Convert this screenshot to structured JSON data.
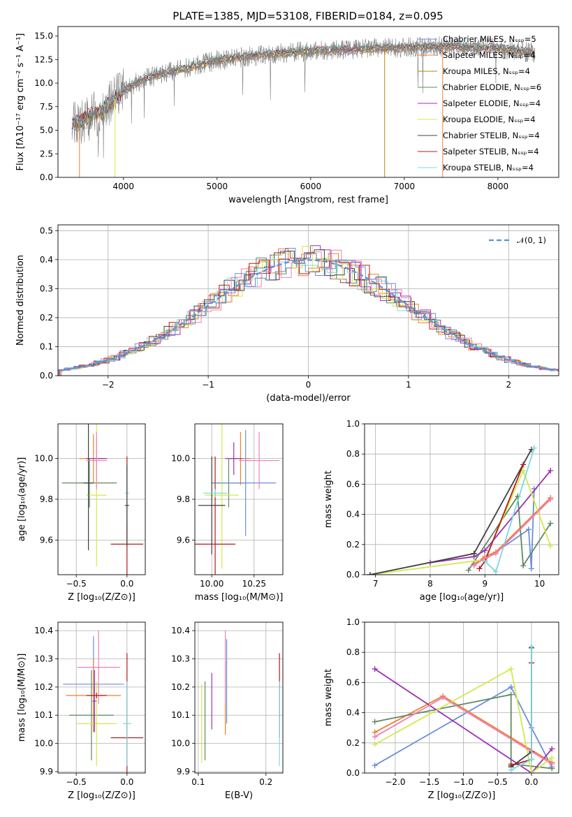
{
  "figure_title": "PLATE=1385, MJD=53108, FIBERID=0184, z=0.095",
  "chart_data": [
    {
      "id": "spectrum",
      "type": "line",
      "xlabel": "wavelength [Angstrom, rest frame]",
      "ylabel": "Flux [fλ10⁻¹⁷ erg cm⁻² s⁻¹ A⁻¹]",
      "xlim": [
        3300,
        8650
      ],
      "ylim": [
        0,
        16
      ],
      "xticks": [
        4000,
        5000,
        6000,
        7000,
        8000
      ],
      "yticks": [
        0.0,
        2.5,
        5.0,
        7.5,
        10.0,
        12.5,
        15.0
      ],
      "grid": false,
      "legend_position": "right",
      "legend": [
        {
          "label": "Chabrier MILES, Nₛₛₚ=5",
          "color": "#6a8fd8"
        },
        {
          "label": "Salpeter MILES, Nₛₛₚ=4",
          "color": "#ee7f2d"
        },
        {
          "label": "Kroupa MILES, Nₛₛₚ=4",
          "color": "#b8860b"
        },
        {
          "label": "Chabrier ELODIE, Nₛₛₚ=6",
          "color": "#5f8a5f"
        },
        {
          "label": "Salpeter ELODIE, Nₛₛₚ=4",
          "color": "#9b30b3"
        },
        {
          "label": "Kroupa ELODIE, Nₛₛₚ=4",
          "color": "#d4e84a"
        },
        {
          "label": "Chabrier STELIB, Nₛₛₚ=4",
          "color": "#404040"
        },
        {
          "label": "Salpeter STELIB, Nₛₛₚ=4",
          "color": "#b01c1c"
        },
        {
          "label": "Kroupa STELIB, Nₛₛₚ=4",
          "color": "#7fd7e0"
        }
      ],
      "continuum": [
        [
          3450,
          5.6
        ],
        [
          3600,
          6.2
        ],
        [
          3800,
          7.2
        ],
        [
          4000,
          9.2
        ],
        [
          4200,
          10.4
        ],
        [
          4500,
          11.2
        ],
        [
          4800,
          11.9
        ],
        [
          5000,
          12.4
        ],
        [
          5300,
          12.8
        ],
        [
          5600,
          13.1
        ],
        [
          6000,
          13.4
        ],
        [
          6500,
          13.6
        ],
        [
          7000,
          13.8
        ],
        [
          7500,
          13.9
        ],
        [
          8000,
          13.7
        ],
        [
          8400,
          13.2
        ]
      ],
      "cutoffs": {
        "blue_start": 3450,
        "red_end": 8400
      },
      "drops": [
        {
          "x": 3530,
          "color": "#ee7f2d"
        },
        {
          "x": 3910,
          "color": "#d4e84a"
        },
        {
          "x": 6790,
          "color": "#b8860b"
        },
        {
          "x": 7410,
          "color": "#ee7f2d"
        }
      ]
    },
    {
      "id": "residuals",
      "type": "histogram",
      "xlabel": "(data-model)/error",
      "ylabel": "Normed distribution",
      "xlim": [
        -2.5,
        2.5
      ],
      "ylim": [
        0,
        0.52
      ],
      "xticks": [
        -2,
        -1,
        0,
        1,
        2
      ],
      "yticks": [
        0.0,
        0.1,
        0.2,
        0.3,
        0.4,
        0.5
      ],
      "grid": true,
      "legend_position": "top-right",
      "legend": [
        {
          "label": "𝒩(0, 1)",
          "color": "#5b8fd8",
          "style": "dashed"
        }
      ],
      "bin_width": 0.1,
      "bin_start": -2.5,
      "series": [
        {
          "color": "#ee7f2d",
          "offset": 0.0
        },
        {
          "color": "#9b30b3",
          "offset": 0.02
        },
        {
          "color": "#5f8a5f",
          "offset": -0.02
        },
        {
          "color": "#d4e84a",
          "offset": 0.04
        },
        {
          "color": "#404040",
          "offset": -0.04
        },
        {
          "color": "#b01c1c",
          "offset": 0.01
        },
        {
          "color": "#7fd7e0",
          "offset": -0.01
        },
        {
          "color": "#ef7fb8",
          "offset": 0.03
        },
        {
          "color": "#6a8fd8",
          "offset": -0.03
        }
      ]
    },
    {
      "id": "age_vs_Z",
      "type": "errorbar",
      "xlabel": "Z [log₁₀(Z/Z⊙)]",
      "ylabel": "age  [log₁₀(age/yr)]",
      "xlim": [
        -0.68,
        0.18
      ],
      "ylim": [
        9.43,
        10.17
      ],
      "xticks": [
        -0.5,
        0.0
      ],
      "xtick_labels": [
        "−0.5",
        "0.0"
      ],
      "yticks": [
        9.6,
        9.8,
        10.0
      ],
      "grid": true,
      "points": [
        {
          "x": -0.33,
          "y": 10.0,
          "xerr": 0.14,
          "yerr": 0.12,
          "color": "#ee7f2d"
        },
        {
          "x": -0.3,
          "y": 10.0,
          "xerr": 0.1,
          "yerr": 0.1,
          "color": "#9b30b3"
        },
        {
          "x": -0.37,
          "y": 9.88,
          "xerr": 0.27,
          "yerr": 0.12,
          "color": "#5f8a5f"
        },
        {
          "x": -0.3,
          "y": 9.82,
          "xerr": 0.1,
          "yerr": 0.35,
          "color": "#d4e84a"
        },
        {
          "x": -0.38,
          "y": 9.88,
          "xerr": 0.05,
          "yerr": 0.33,
          "color": "#404040"
        },
        {
          "x": 0.0,
          "y": 9.58,
          "xerr": 0.16,
          "yerr": 0.43,
          "color": "#b01c1c"
        },
        {
          "x": 0.0,
          "y": 9.83,
          "xerr": 0.02,
          "yerr": 0.14,
          "color": "#7fd7e0"
        },
        {
          "x": -0.3,
          "y": 9.99,
          "xerr": 0.1,
          "yerr": 0.14,
          "color": "#ef7fb8"
        },
        {
          "x": 0.0,
          "y": 9.77,
          "xerr": 0.02,
          "yerr": 0.2,
          "color": "#404040"
        }
      ]
    },
    {
      "id": "age_vs_mass",
      "type": "errorbar",
      "xlabel": "mass [log₁₀(M/M⊙)]",
      "ylabel": "",
      "xlim": [
        9.9,
        10.42
      ],
      "ylim": [
        9.43,
        10.17
      ],
      "xticks": [
        10.0,
        10.25
      ],
      "xtick_labels": [
        "10.00",
        "10.25"
      ],
      "yticks": [
        9.6,
        9.8,
        10.0
      ],
      "grid": true,
      "points": [
        {
          "x": 10.17,
          "y": 10.0,
          "xerr": 0.06,
          "yerr": 0.13,
          "color": "#ee7f2d"
        },
        {
          "x": 10.13,
          "y": 10.0,
          "xerr": 0.05,
          "yerr": 0.08,
          "color": "#9b30b3"
        },
        {
          "x": 10.1,
          "y": 9.88,
          "xerr": 0.1,
          "yerr": 0.12,
          "color": "#5f8a5f"
        },
        {
          "x": 10.06,
          "y": 9.82,
          "xerr": 0.1,
          "yerr": 0.36,
          "color": "#d4e84a"
        },
        {
          "x": 10.0,
          "y": 9.77,
          "xerr": 0.08,
          "yerr": 0.24,
          "color": "#404040"
        },
        {
          "x": 10.02,
          "y": 9.58,
          "xerr": 0.0,
          "yerr": 0.43,
          "color": "#b01c1c"
        },
        {
          "x": 10.02,
          "y": 9.58,
          "xerr": 0.12,
          "yerr": 0.0,
          "color": "#b01c1c"
        },
        {
          "x": 10.2,
          "y": 9.88,
          "xerr": 0.18,
          "yerr": 0.26,
          "color": "#6a8fd8"
        },
        {
          "x": 10.28,
          "y": 9.99,
          "xerr": 0.12,
          "yerr": 0.14,
          "color": "#ef7fb8"
        },
        {
          "x": 10.02,
          "y": 9.83,
          "xerr": 0.07,
          "yerr": 0.02,
          "color": "#7fd7e0"
        }
      ]
    },
    {
      "id": "weight_vs_age",
      "type": "line",
      "xlabel": "age  [log₁₀(age/yr)]",
      "ylabel": "mass weight",
      "xlim": [
        6.8,
        10.35
      ],
      "ylim": [
        0,
        1.0
      ],
      "xticks": [
        7,
        8,
        9,
        10
      ],
      "yticks": [
        0.0,
        0.2,
        0.4,
        0.6,
        0.8,
        1.0
      ],
      "grid": true,
      "series": [
        {
          "color": "#6a8fd8",
          "x": [
            9.0,
            9.8,
            9.85,
            9.9
          ],
          "y": [
            0.1,
            0.3,
            0.04,
            0.57
          ]
        },
        {
          "color": "#ee7f2d",
          "x": [
            8.8,
            9.0,
            9.2,
            10.2
          ],
          "y": [
            0.07,
            0.12,
            0.15,
            0.51
          ]
        },
        {
          "color": "#5f8a5f",
          "x": [
            8.7,
            9.6,
            9.7,
            10.2
          ],
          "y": [
            0.03,
            0.52,
            0.06,
            0.34
          ]
        },
        {
          "color": "#9b30b3",
          "x": [
            8.0,
            8.8,
            9.0,
            10.2
          ],
          "y": [
            0.08,
            0.12,
            0.16,
            0.69
          ]
        },
        {
          "color": "#d4e84a",
          "x": [
            6.9,
            9.0,
            9.7,
            10.2
          ],
          "y": [
            0.0,
            0.1,
            0.69,
            0.19
          ]
        },
        {
          "color": "#404040",
          "x": [
            6.9,
            8.8,
            9.85
          ],
          "y": [
            0.0,
            0.14,
            0.83
          ]
        },
        {
          "color": "#b01c1c",
          "x": [
            8.9,
            9.0,
            9.7
          ],
          "y": [
            0.04,
            0.09,
            0.73
          ]
        },
        {
          "color": "#7fd7e0",
          "x": [
            9.0,
            9.2,
            9.9
          ],
          "y": [
            0.09,
            0.02,
            0.84
          ]
        },
        {
          "color": "#ef7fb8",
          "x": [
            8.8,
            9.0,
            9.2,
            10.2
          ],
          "y": [
            0.06,
            0.11,
            0.14,
            0.5
          ]
        }
      ]
    },
    {
      "id": "mass_vs_Z",
      "type": "errorbar",
      "xlabel": "Z [log₁₀(Z/Z⊙)]",
      "ylabel": "mass [log₁₀(M/M⊙)]",
      "xlim": [
        -0.68,
        0.18
      ],
      "ylim": [
        9.895,
        10.43
      ],
      "xticks": [
        -0.5,
        0.0
      ],
      "xtick_labels": [
        "−0.5",
        "0.0"
      ],
      "yticks": [
        9.9,
        10.0,
        10.1,
        10.2,
        10.3,
        10.4
      ],
      "grid": true,
      "points": [
        {
          "x": -0.33,
          "y": 10.21,
          "xerr": 0.3,
          "yerr": 0.17,
          "color": "#6a8fd8"
        },
        {
          "x": -0.33,
          "y": 10.17,
          "xerr": 0.27,
          "yerr": 0.13,
          "color": "#ee7f2d"
        },
        {
          "x": -0.35,
          "y": 10.1,
          "xerr": 0.22,
          "yerr": 0.16,
          "color": "#5f8a5f"
        },
        {
          "x": -0.3,
          "y": 10.07,
          "xerr": 0.2,
          "yerr": 0.15,
          "color": "#d4e84a"
        },
        {
          "x": -0.32,
          "y": 10.15,
          "xerr": 0.02,
          "yerr": 0.11,
          "color": "#9b30b3"
        },
        {
          "x": -0.28,
          "y": 10.27,
          "xerr": 0.21,
          "yerr": 0.13,
          "color": "#ef7fb8"
        },
        {
          "x": -0.3,
          "y": 10.17,
          "xerr": 0.1,
          "yerr": 0.01,
          "color": "#b01c1c"
        },
        {
          "x": 0.0,
          "y": 10.02,
          "xerr": 0.16,
          "yerr": 0.3,
          "color": "#b01c1c"
        },
        {
          "x": 0.0,
          "y": 10.07,
          "xerr": 0.04,
          "yerr": 0.15,
          "color": "#7fd7e0"
        }
      ]
    },
    {
      "id": "mass_vs_EBV",
      "type": "errorbar",
      "xlabel": "E(B-V)",
      "ylabel": "",
      "xlim": [
        0.095,
        0.225
      ],
      "ylim": [
        9.895,
        10.43
      ],
      "xticks": [
        0.1,
        0.2
      ],
      "xtick_labels": [
        "0.1",
        "0.2"
      ],
      "yticks": [
        9.9,
        10.0,
        10.1,
        10.2,
        10.3,
        10.4
      ],
      "grid": true,
      "points": [
        {
          "x": 0.105,
          "y": 10.07,
          "xerr": 0,
          "yerr": 0.14,
          "color": "#d4e84a"
        },
        {
          "x": 0.11,
          "y": 10.08,
          "xerr": 0,
          "yerr": 0.14,
          "color": "#5f8a5f"
        },
        {
          "x": 0.12,
          "y": 10.15,
          "xerr": 0,
          "yerr": 0.1,
          "color": "#9b30b3"
        },
        {
          "x": 0.14,
          "y": 10.16,
          "xerr": 0,
          "yerr": 0.13,
          "color": "#ee7f2d"
        },
        {
          "x": 0.14,
          "y": 10.27,
          "xerr": 0,
          "yerr": 0.13,
          "color": "#ef7fb8"
        },
        {
          "x": 0.142,
          "y": 10.22,
          "xerr": 0,
          "yerr": 0.15,
          "color": "#6a8fd8"
        },
        {
          "x": 0.22,
          "y": 10.17,
          "xerr": 0,
          "yerr": 0.15,
          "color": "#b01c1c"
        },
        {
          "x": 0.22,
          "y": 10.07,
          "xerr": 0,
          "yerr": 0.15,
          "color": "#7fd7e0"
        }
      ]
    },
    {
      "id": "weight_vs_Z",
      "type": "line",
      "xlabel": "Z [log₁₀(Z/Z⊙)]",
      "ylabel": "mass weight",
      "xlim": [
        -2.45,
        0.4
      ],
      "ylim": [
        0,
        1.0
      ],
      "xticks": [
        -2.0,
        -1.5,
        -1.0,
        -0.5,
        0.0
      ],
      "xtick_labels": [
        "−2.0",
        "−1.5",
        "−1.0",
        "−0.5",
        "0.0"
      ],
      "yticks": [
        0.0,
        0.2,
        0.4,
        0.6,
        0.8,
        1.0
      ],
      "grid": true,
      "series": [
        {
          "color": "#6a8fd8",
          "x": [
            -2.3,
            -0.3,
            0.0,
            0.3
          ],
          "y": [
            0.05,
            0.57,
            0.3,
            0.04
          ]
        },
        {
          "color": "#ee7f2d",
          "x": [
            -2.3,
            -1.3,
            0.3
          ],
          "y": [
            0.27,
            0.51,
            0.07
          ]
        },
        {
          "color": "#5f8a5f",
          "x": [
            -2.3,
            -0.3,
            -0.3,
            0.3
          ],
          "y": [
            0.34,
            0.52,
            0.06,
            0.03
          ]
        },
        {
          "color": "#9b30b3",
          "x": [
            -2.3,
            0.0,
            0.3
          ],
          "y": [
            0.69,
            0.0,
            0.16
          ]
        },
        {
          "color": "#d4e84a",
          "x": [
            -2.3,
            -0.3,
            0.0,
            0.3
          ],
          "y": [
            0.19,
            0.69,
            0.0,
            0.1
          ]
        },
        {
          "color": "#404040",
          "x": [
            -0.3,
            0.0,
            0.0
          ],
          "y": [
            0.04,
            0.14,
            0.83
          ]
        },
        {
          "color": "#b01c1c",
          "x": [
            -0.3,
            0.0,
            0.0
          ],
          "y": [
            0.05,
            0.09,
            0.73
          ]
        },
        {
          "color": "#7fd7e0",
          "x": [
            -0.3,
            0.0,
            0.0
          ],
          "y": [
            0.02,
            0.09,
            0.84
          ]
        },
        {
          "color": "#ef7fb8",
          "x": [
            -2.3,
            -1.3,
            0.3
          ],
          "y": [
            0.24,
            0.5,
            0.06
          ]
        }
      ]
    }
  ]
}
